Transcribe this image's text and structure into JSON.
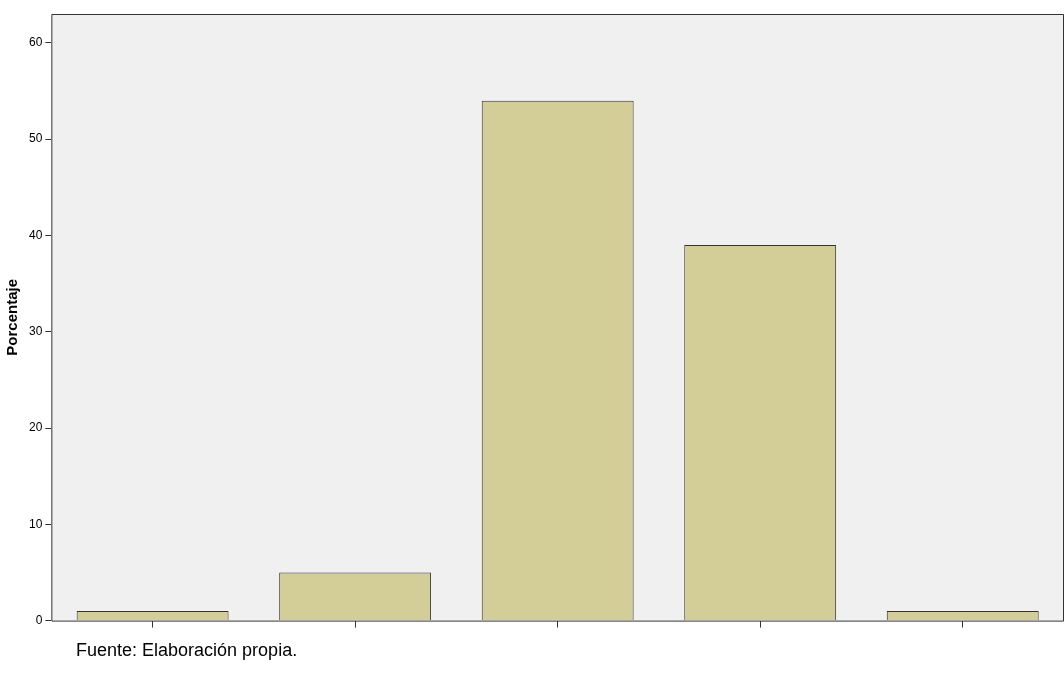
{
  "chart_data": {
    "type": "bar",
    "ylabel": "Porcentaje",
    "categories": [
      null,
      null,
      null,
      null,
      null
    ],
    "values": [
      1,
      5,
      54,
      39,
      1
    ],
    "color": "#d3ce97",
    "ylim": [
      0,
      63
    ],
    "yticks": [
      0,
      10,
      20,
      30,
      40,
      50,
      60
    ],
    "grid": false,
    "legend": false,
    "tick_labels": "y",
    "annotations": [
      "Fuente: Elaboración propia."
    ]
  }
}
